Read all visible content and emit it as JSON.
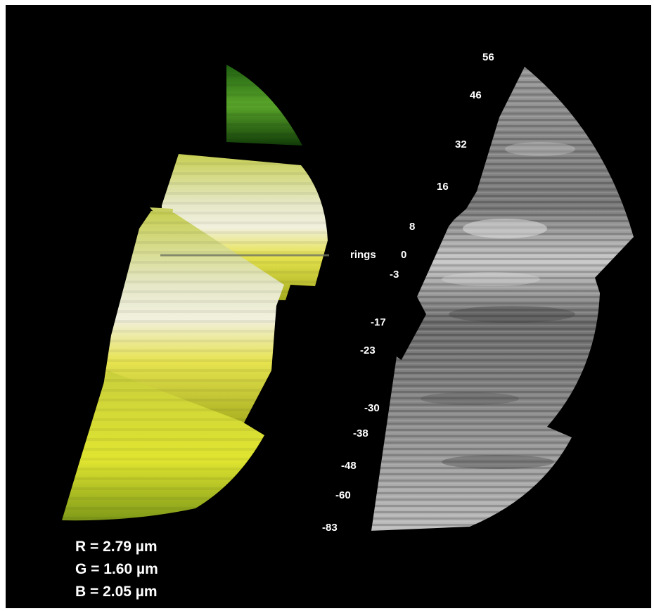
{
  "latitude_labels": [
    "56",
    "46",
    "32",
    "16",
    "8",
    "0",
    "-3",
    "-17",
    "-23",
    "-30",
    "-38",
    "-48",
    "-60",
    "-83"
  ],
  "rings_label": "rings",
  "wavelengths": {
    "r": "R = 2.79 µm",
    "g": "G = 1.60 µm",
    "b": "B = 2.05 µm"
  },
  "colors": {
    "background": "#000000",
    "left_panel": "#d8e04a",
    "right_panel": "#8a8a8a",
    "text": "#ffffff"
  }
}
